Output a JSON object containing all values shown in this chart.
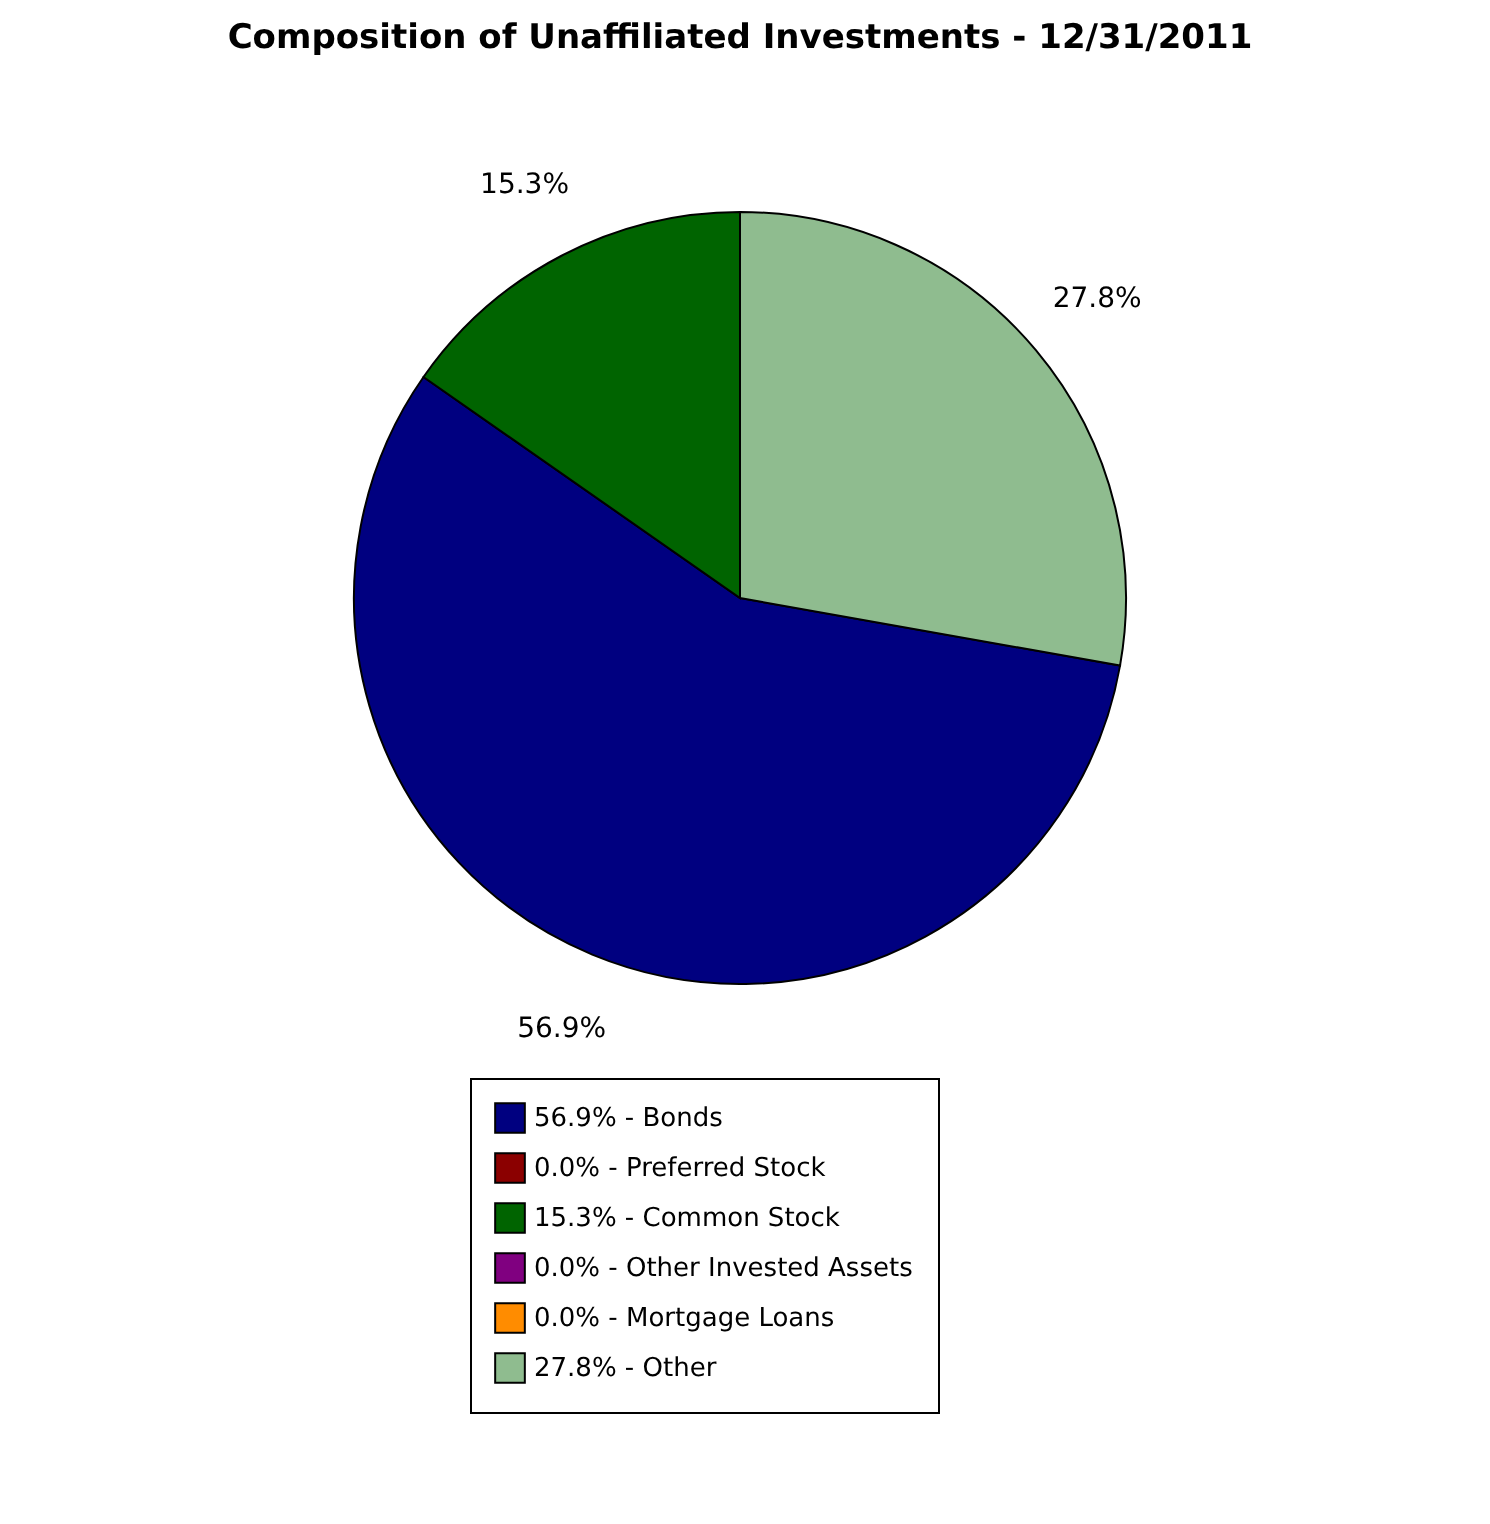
{
  "chart_data": {
    "type": "pie",
    "title": "Composition of Unaffiliated Investments - 12/31/2011",
    "categories": [
      "56.9% - Bonds",
      "0.0% - Preferred Stock",
      "15.3% - Common Stock",
      "0.0% - Other Invested Assets",
      "0.0% - Mortgage Loans",
      "27.8% - Other"
    ],
    "values": [
      56.9,
      0.0,
      15.3,
      0.0,
      0.0,
      27.8
    ],
    "colors": [
      "#000080",
      "#8b0000",
      "#006400",
      "#800080",
      "#ff8c00",
      "#8fbc8f"
    ],
    "value_labels": [
      "56.9%",
      null,
      "15.3%",
      null,
      null,
      "27.8%"
    ],
    "legend": "bottom"
  }
}
